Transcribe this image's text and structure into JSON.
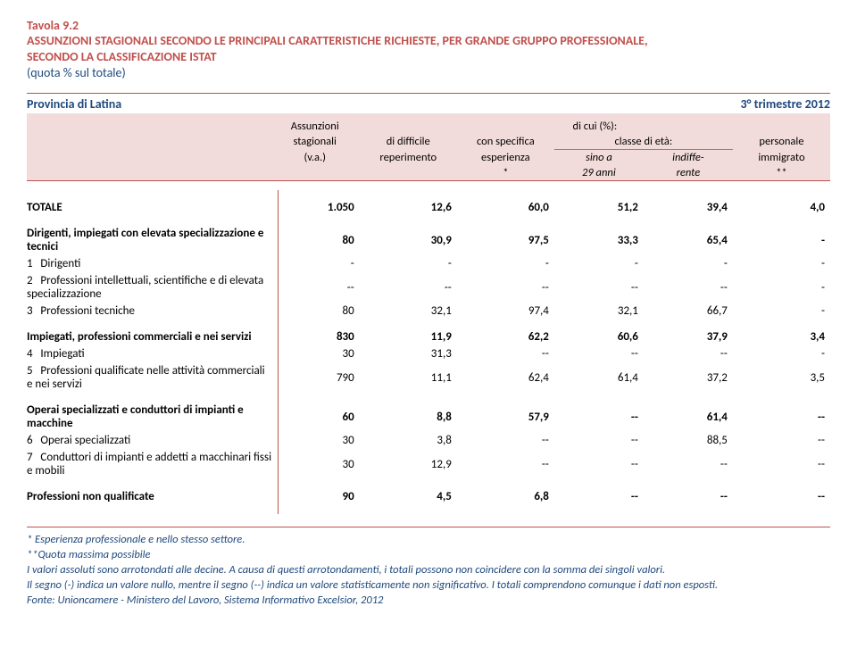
{
  "title": {
    "tavola": "Tavola 9.2",
    "main1": "ASSUNZIONI STAGIONALI SECONDO LE PRINCIPALI CARATTERISTICHE RICHIESTE, PER GRANDE GRUPPO PROFESSIONALE,",
    "main2": "SECONDO LA CLASSIFICAZIONE ISTAT",
    "sub": "(quota % sul totale)"
  },
  "header": {
    "province": "Provincia di Latina",
    "period": "3° trimestre 2012",
    "col_left1": "Assunzioni",
    "col_left2": "stagionali",
    "col_left3": "(v.a.)",
    "di_cui": "di cui  (%):",
    "difficile1": "di difficile",
    "difficile2": "reperimento",
    "esperienza1": "con specifica",
    "esperienza2": "esperienza",
    "esperienza3": "*",
    "eta": "classe di età:",
    "sino1": "sino a",
    "sino2": "29 anni",
    "indiff1": "indiffe-",
    "indiff2": "rente",
    "pers1": "personale",
    "pers2": "immigrato",
    "pers3": "**"
  },
  "totale": {
    "label": "TOTALE",
    "v": [
      "1.050",
      "12,6",
      "60,0",
      "51,2",
      "39,4",
      "4,0"
    ]
  },
  "groups": [
    {
      "head": {
        "label": "Dirigenti, impiegati con elevata specializzazione e tecnici",
        "v": [
          "80",
          "30,9",
          "97,5",
          "33,3",
          "65,4",
          "-"
        ]
      },
      "rows": [
        {
          "n": "1",
          "label": "Dirigenti",
          "v": [
            "-",
            "-",
            "-",
            "-",
            "-",
            "-"
          ]
        },
        {
          "n": "2",
          "label": "Professioni intellettuali, scientifiche e di elevata specializzazione",
          "v": [
            "--",
            "--",
            "--",
            "--",
            "--",
            "-"
          ]
        },
        {
          "n": "3",
          "label": "Professioni tecniche",
          "v": [
            "80",
            "32,1",
            "97,4",
            "32,1",
            "66,7",
            "-"
          ]
        }
      ]
    },
    {
      "head": {
        "label": "Impiegati, professioni commerciali e nei servizi",
        "v": [
          "830",
          "11,9",
          "62,2",
          "60,6",
          "37,9",
          "3,4"
        ]
      },
      "rows": [
        {
          "n": "4",
          "label": "Impiegati",
          "v": [
            "30",
            "31,3",
            "--",
            "--",
            "--",
            "-"
          ]
        },
        {
          "n": "5",
          "label": "Professioni qualificate nelle attività commerciali e nei servizi",
          "v": [
            "790",
            "11,1",
            "62,4",
            "61,4",
            "37,2",
            "3,5"
          ]
        }
      ]
    },
    {
      "head": {
        "label": "Operai specializzati e conduttori di impianti e macchine",
        "v": [
          "60",
          "8,8",
          "57,9",
          "--",
          "61,4",
          "--"
        ]
      },
      "rows": [
        {
          "n": "6",
          "label": "Operai specializzati",
          "v": [
            "30",
            "3,8",
            "--",
            "--",
            "88,5",
            "--"
          ]
        },
        {
          "n": "7",
          "label": "Conduttori di impianti e addetti a macchinari fissi e mobili",
          "v": [
            "30",
            "12,9",
            "--",
            "--",
            "--",
            "--"
          ]
        }
      ]
    }
  ],
  "nonqual": {
    "label": "Professioni non qualificate",
    "v": [
      "90",
      "4,5",
      "6,8",
      "--",
      "--",
      "--"
    ]
  },
  "footer": {
    "l1": "* Esperienza professionale e nello stesso settore.",
    "l2": "**Quota massima possibile",
    "l3": "I valori assoluti sono arrotondati alle decine. A causa di questi arrotondamenti, i totali possono non coincidere con la somma dei singoli valori.",
    "l4": "Il segno (-) indica un valore nullo, mentre il segno (--) indica un valore statisticamente non significativo. I totali comprendono comunque i dati non esposti.",
    "fonte": "Fonte: Unioncamere - Ministero del Lavoro, Sistema Informativo Excelsior, 2012"
  },
  "colors": {
    "accent": "#c0504d",
    "blue": "#1f497d",
    "band": "#f2dcdb"
  }
}
